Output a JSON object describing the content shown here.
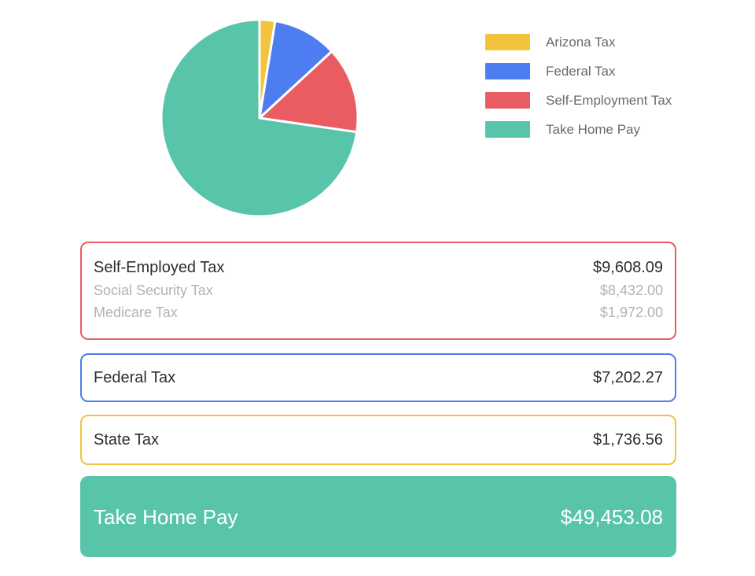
{
  "colors": {
    "background": "#ffffff",
    "arizona_yellow": "#F2C33D",
    "federal_blue": "#4E7DF1",
    "self_employment_red": "#E95D62",
    "take_home_teal": "#58C5AB",
    "dark_text": "#2d2d2d",
    "muted_text": "#b2b2b5",
    "legend_text": "#6a6a6a",
    "slice_separator": "#ffffff"
  },
  "chart_data": {
    "type": "pie",
    "title": "",
    "legend_position": "right",
    "start_angle_deg": -90,
    "direction": "clockwise",
    "slices": [
      {
        "label": "Arizona Tax",
        "value": 1736.56,
        "color": "#F2C33D"
      },
      {
        "label": "Federal Tax",
        "value": 7202.27,
        "color": "#4E7DF1"
      },
      {
        "label": "Self-Employment Tax",
        "value": 9608.09,
        "color": "#E95D62"
      },
      {
        "label": "Take Home Pay",
        "value": 49453.08,
        "color": "#58C5AB"
      }
    ]
  },
  "cards": [
    {
      "id": "self-employed-tax",
      "border_color": "#E95D62",
      "title": {
        "label": "Self-Employed Tax",
        "value": "$9,608.09"
      },
      "subrows": [
        {
          "label": "Social Security Tax",
          "value": "$8,432.00"
        },
        {
          "label": "Medicare Tax",
          "value": "$1,972.00"
        }
      ]
    },
    {
      "id": "federal-tax",
      "border_color": "#4E7DF1",
      "title": {
        "label": "Federal Tax",
        "value": "$7,202.27"
      }
    },
    {
      "id": "state-tax",
      "border_color": "#F2C33D",
      "title": {
        "label": "State Tax",
        "value": "$1,736.56"
      }
    },
    {
      "id": "take-home-pay",
      "background_color": "#58C5AB",
      "text_color": "#ffffff",
      "title": {
        "label": "Take Home Pay",
        "value": "$49,453.08"
      }
    }
  ]
}
